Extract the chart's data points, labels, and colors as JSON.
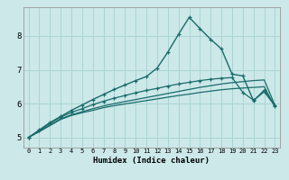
{
  "title": "",
  "xlabel": "Humidex (Indice chaleur)",
  "ylabel": "",
  "bg_color": "#cce8e8",
  "grid_color": "#aad4d4",
  "line_color": "#1a6b6b",
  "xlim": [
    -0.5,
    23.5
  ],
  "ylim": [
    4.7,
    8.85
  ],
  "xticks": [
    0,
    1,
    2,
    3,
    4,
    5,
    6,
    7,
    8,
    9,
    10,
    11,
    12,
    13,
    14,
    15,
    16,
    17,
    18,
    19,
    20,
    21,
    22,
    23
  ],
  "yticks": [
    5,
    6,
    7,
    8
  ],
  "series": [
    {
      "x": [
        0,
        1,
        2,
        3,
        4,
        5,
        6,
        7,
        8,
        9,
        10,
        11,
        12,
        13,
        14,
        15,
        16,
        17,
        18,
        19,
        20,
        21,
        22,
        23
      ],
      "y": [
        5.0,
        5.17,
        5.35,
        5.53,
        5.65,
        5.73,
        5.8,
        5.88,
        5.94,
        5.99,
        6.04,
        6.09,
        6.14,
        6.19,
        6.24,
        6.28,
        6.33,
        6.37,
        6.41,
        6.44,
        6.46,
        6.48,
        6.5,
        5.9
      ],
      "marker": false,
      "linewidth": 0.9
    },
    {
      "x": [
        0,
        1,
        2,
        3,
        4,
        5,
        6,
        7,
        8,
        9,
        10,
        11,
        12,
        13,
        14,
        15,
        16,
        17,
        18,
        19,
        20,
        21,
        22,
        23
      ],
      "y": [
        5.0,
        5.18,
        5.37,
        5.55,
        5.67,
        5.76,
        5.85,
        5.93,
        6.0,
        6.06,
        6.12,
        6.18,
        6.24,
        6.3,
        6.36,
        6.42,
        6.48,
        6.53,
        6.58,
        6.62,
        6.65,
        6.68,
        6.7,
        5.95
      ],
      "marker": false,
      "linewidth": 0.9
    },
    {
      "x": [
        0,
        1,
        2,
        3,
        4,
        5,
        6,
        7,
        8,
        9,
        10,
        11,
        12,
        13,
        14,
        15,
        16,
        17,
        18,
        19,
        20,
        21,
        22,
        23
      ],
      "y": [
        5.0,
        5.2,
        5.42,
        5.6,
        5.74,
        5.85,
        5.97,
        6.07,
        6.16,
        6.24,
        6.32,
        6.39,
        6.45,
        6.52,
        6.58,
        6.63,
        6.68,
        6.72,
        6.75,
        6.77,
        6.33,
        6.1,
        6.35,
        5.93
      ],
      "marker": true,
      "linewidth": 0.9
    },
    {
      "x": [
        0,
        1,
        2,
        3,
        4,
        5,
        6,
        7,
        8,
        9,
        10,
        11,
        12,
        13,
        14,
        15,
        16,
        17,
        18,
        19,
        20,
        21,
        22,
        23
      ],
      "y": [
        5.0,
        5.22,
        5.44,
        5.62,
        5.8,
        5.96,
        6.12,
        6.27,
        6.42,
        6.55,
        6.68,
        6.8,
        7.05,
        7.52,
        8.05,
        8.55,
        8.22,
        7.9,
        7.62,
        6.87,
        6.82,
        6.08,
        6.4,
        5.95
      ],
      "marker": true,
      "linewidth": 1.0
    }
  ]
}
